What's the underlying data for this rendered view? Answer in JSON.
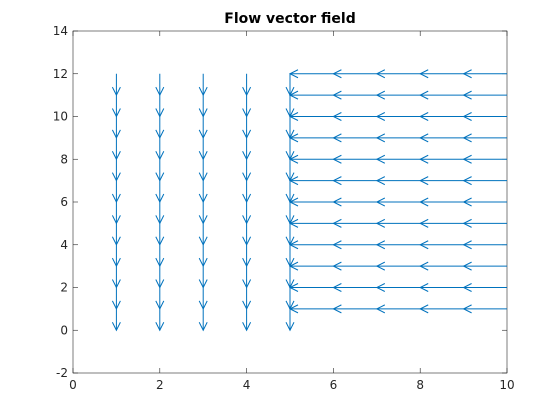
{
  "chart_data": {
    "type": "quiver",
    "title": "Flow vector field",
    "xlabel": "",
    "ylabel": "",
    "xlim": [
      0,
      10
    ],
    "ylim": [
      -2,
      14
    ],
    "xticks": [
      0,
      2,
      4,
      6,
      8,
      10
    ],
    "yticks": [
      -2,
      0,
      2,
      4,
      6,
      8,
      10,
      12,
      14
    ],
    "grid": false,
    "color": "#0072BD",
    "series": [
      {
        "x": [
          1,
          2,
          3,
          4
        ],
        "y_start": 12,
        "y_end": 0,
        "y_step": 1,
        "u": 0,
        "v": -1
      },
      {
        "x_start": 10,
        "x_end": 5,
        "x_step": 1,
        "y": [
          1,
          2,
          3,
          4,
          5,
          6,
          7,
          8,
          9,
          10,
          11,
          12
        ],
        "u": -1,
        "v": 0
      },
      {
        "x": [
          5
        ],
        "y_start": 12,
        "y_end": 0,
        "y_step": 1,
        "u": 0,
        "v": -1
      }
    ]
  }
}
